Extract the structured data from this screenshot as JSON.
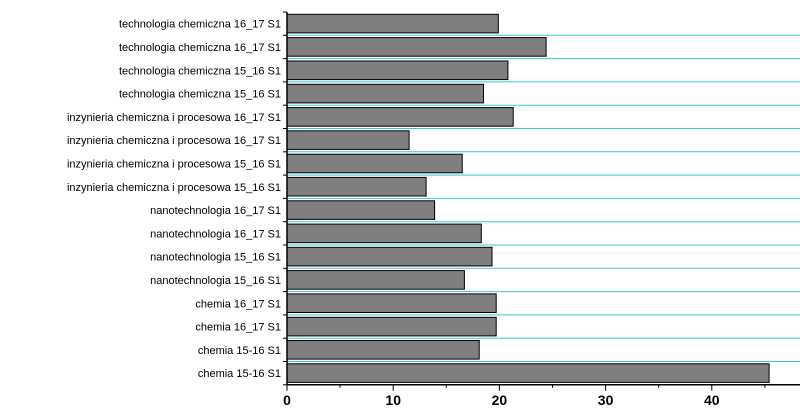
{
  "chart_data": {
    "type": "bar",
    "orientation": "horizontal",
    "categories": [
      "technologia chemiczna 16_17 S1",
      "technologia chemiczna 16_17 S1",
      "technologia chemiczna 15_16 S1",
      "technologia chemiczna 15_16 S1",
      "inzynieria chemiczna i procesowa 16_17 S1",
      "inzynieria chemiczna i procesowa 16_17 S1",
      "inzynieria chemiczna i procesowa 15_16 S1",
      "inzynieria chemiczna i procesowa 15_16 S1",
      "nanotechnologia 16_17 S1",
      "nanotechnologia 16_17 S1",
      "nanotechnologia 15_16 S1",
      "nanotechnologia 15_16 S1",
      "chemia 16_17 S1",
      "chemia 16_17 S1",
      "chemia 15-16 S1",
      "chemia 15-16 S1"
    ],
    "values": [
      19.9,
      24.4,
      20.8,
      18.5,
      21.3,
      11.5,
      16.5,
      13.1,
      13.9,
      18.3,
      19.3,
      16.7,
      19.7,
      19.7,
      18.1,
      45.4
    ],
    "xlim": [
      0,
      48
    ],
    "xticks": [
      0,
      10,
      20,
      30,
      40
    ],
    "title": "",
    "xlabel": "",
    "ylabel": "",
    "bar_color": "#7f7f7f",
    "bar_edge_color": "#000000",
    "grid_color": "#33cccc",
    "grid": true
  }
}
